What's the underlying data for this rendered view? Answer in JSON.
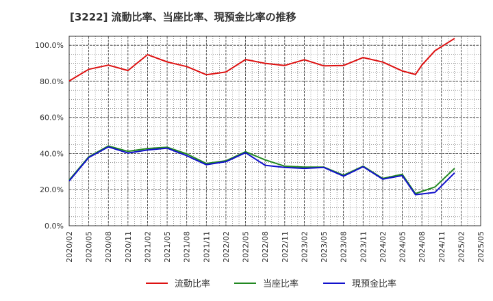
{
  "chart_data": {
    "type": "line",
    "title": "[3222]  流動比率、当座比率、現預金比率の推移",
    "xlabel": "",
    "ylabel": "",
    "ylim": [
      0,
      105
    ],
    "y_ticks": [
      0,
      20,
      40,
      60,
      80,
      100
    ],
    "y_tick_labels": [
      "0.0%",
      "20.0%",
      "40.0%",
      "60.0%",
      "80.0%",
      "100.0%"
    ],
    "x_tick_labels": [
      "2020/02",
      "2020/05",
      "2020/08",
      "2020/11",
      "2021/02",
      "2021/05",
      "2021/08",
      "2021/11",
      "2022/02",
      "2022/05",
      "2022/08",
      "2022/11",
      "2023/02",
      "2023/05",
      "2023/08",
      "2023/11",
      "2024/02",
      "2024/05",
      "2024/08",
      "2024/11",
      "2025/02",
      "2025/05"
    ],
    "grid": true,
    "legend_position": "bottom",
    "series": [
      {
        "name": "流動比率",
        "color": "#dd1111",
        "points": [
          [
            0,
            80.2
          ],
          [
            1,
            86.7
          ],
          [
            2,
            89.0
          ],
          [
            3,
            86.0
          ],
          [
            4,
            94.8
          ],
          [
            5,
            90.8
          ],
          [
            6,
            88.2
          ],
          [
            7,
            83.7
          ],
          [
            8,
            85.2
          ],
          [
            9,
            92.1
          ],
          [
            10,
            90.0
          ],
          [
            11,
            88.8
          ],
          [
            12,
            92.0
          ],
          [
            13,
            88.6
          ],
          [
            14,
            88.8
          ],
          [
            15,
            93.2
          ],
          [
            16,
            90.7
          ],
          [
            17,
            85.8
          ],
          [
            17.67,
            83.8
          ],
          [
            18,
            89.0
          ],
          [
            18.67,
            97.0
          ],
          [
            19.67,
            103.8
          ]
        ]
      },
      {
        "name": "当座比率",
        "color": "#228822",
        "points": [
          [
            0,
            25.3
          ],
          [
            1,
            38.2
          ],
          [
            2,
            44.2
          ],
          [
            3,
            41.2
          ],
          [
            4,
            42.8
          ],
          [
            5,
            43.5
          ],
          [
            6,
            39.8
          ],
          [
            7,
            34.5
          ],
          [
            8,
            36.0
          ],
          [
            9,
            41.0
          ],
          [
            10,
            36.5
          ],
          [
            11,
            33.0
          ],
          [
            12,
            32.5
          ],
          [
            13,
            32.5
          ],
          [
            14,
            28.0
          ],
          [
            15,
            33.0
          ],
          [
            16,
            26.2
          ],
          [
            17,
            28.5
          ],
          [
            17.67,
            17.8
          ],
          [
            18.67,
            21.5
          ],
          [
            19.67,
            31.8
          ]
        ]
      },
      {
        "name": "現預金比率",
        "color": "#1111cc",
        "points": [
          [
            0,
            24.8
          ],
          [
            1,
            37.8
          ],
          [
            2,
            43.7
          ],
          [
            3,
            40.3
          ],
          [
            4,
            42.0
          ],
          [
            5,
            43.0
          ],
          [
            6,
            38.8
          ],
          [
            7,
            33.8
          ],
          [
            8,
            35.5
          ],
          [
            9,
            40.5
          ],
          [
            10,
            33.5
          ],
          [
            11,
            32.3
          ],
          [
            12,
            31.8
          ],
          [
            13,
            32.3
          ],
          [
            14,
            27.5
          ],
          [
            15,
            32.7
          ],
          [
            16,
            25.8
          ],
          [
            17,
            27.8
          ],
          [
            17.67,
            17.2
          ],
          [
            18.67,
            18.5
          ],
          [
            19.67,
            29.3
          ]
        ]
      }
    ]
  }
}
